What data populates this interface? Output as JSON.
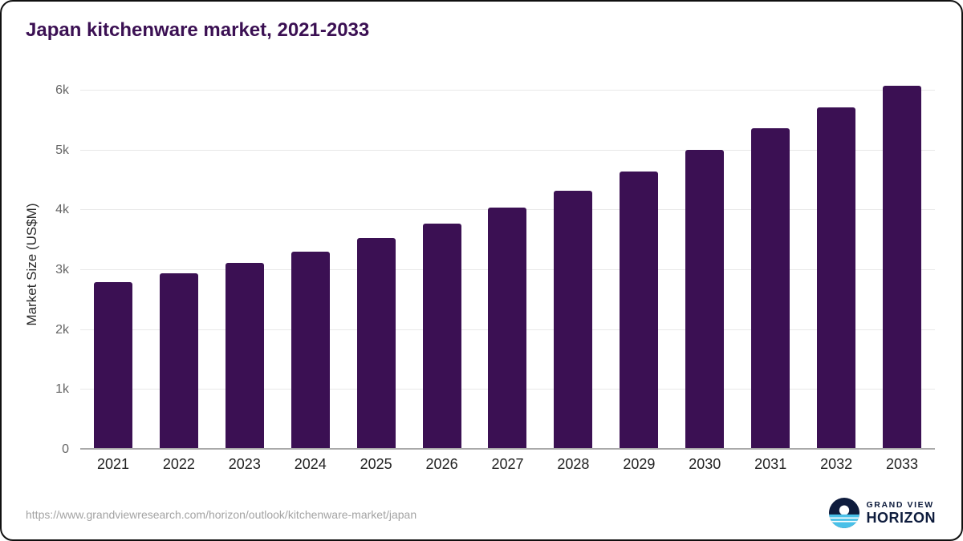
{
  "title": "Japan kitchenware market, 2021-2033",
  "footer": {
    "source_url": "https://www.grandviewresearch.com/horizon/outlook/kitchenware-market/japan",
    "brand_top": "GRAND VIEW",
    "brand_bottom": "HORIZON"
  },
  "colors": {
    "bar": "#3b1053",
    "title": "#3b1053",
    "grid": "#e8e8e8",
    "axis": "#a9a9a9",
    "ytick": "#666666",
    "xtick": "#222222",
    "url": "#a3a3a3",
    "brand_navy": "#0e1c3d",
    "brand_blue": "#49c0e8"
  },
  "chart_data": {
    "type": "bar",
    "title": "Japan kitchenware market, 2021-2033",
    "categories": [
      "2021",
      "2022",
      "2023",
      "2024",
      "2025",
      "2026",
      "2027",
      "2028",
      "2029",
      "2030",
      "2031",
      "2032",
      "2033"
    ],
    "values": [
      2800,
      2950,
      3120,
      3310,
      3530,
      3780,
      4040,
      4330,
      4650,
      5010,
      5370,
      5720,
      6080
    ],
    "xlabel": "",
    "ylabel": "Market Size (US$M)",
    "ylim": [
      0,
      6200
    ],
    "y_ticks": [
      {
        "value": 0,
        "label": "0"
      },
      {
        "value": 1000,
        "label": "1k"
      },
      {
        "value": 2000,
        "label": "2k"
      },
      {
        "value": 3000,
        "label": "3k"
      },
      {
        "value": 4000,
        "label": "4k"
      },
      {
        "value": 5000,
        "label": "5k"
      },
      {
        "value": 6000,
        "label": "6k"
      }
    ],
    "grid": "horizontal",
    "legend": "none",
    "bar_color": "#3b1053"
  }
}
